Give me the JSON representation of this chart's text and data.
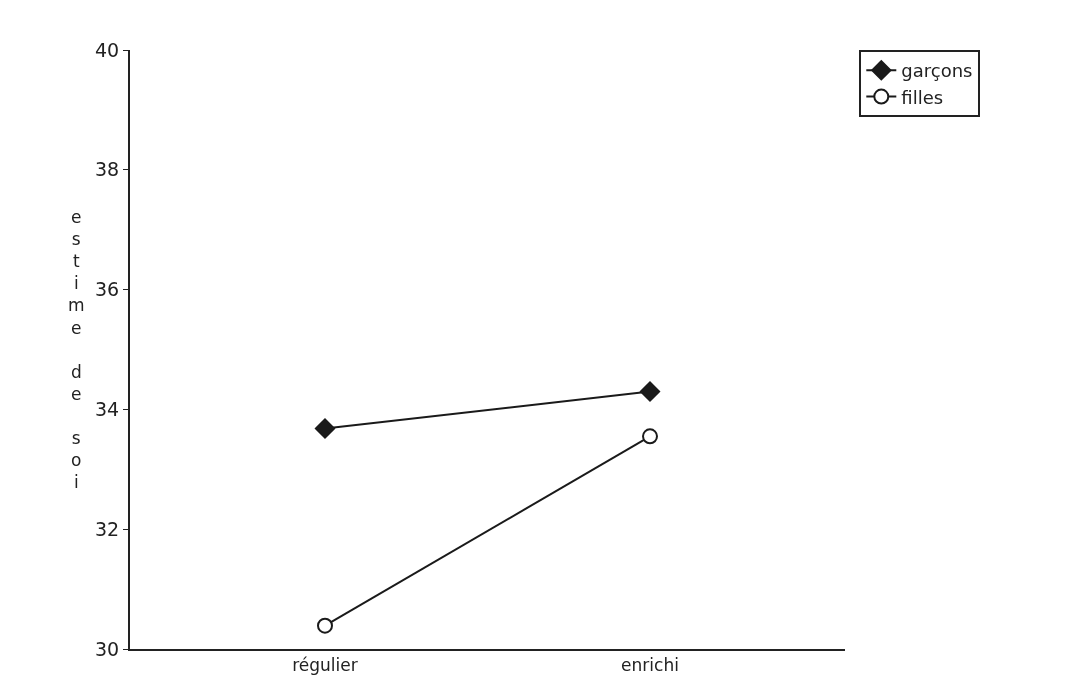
{
  "chart_data": {
    "type": "line",
    "ylabel": "estime de soi",
    "categories": [
      "régulier",
      "enrichi"
    ],
    "series": [
      {
        "name": "garçons",
        "color": "#1a1a1a",
        "values": [
          33.68,
          34.3
        ],
        "marker": "diamond"
      },
      {
        "name": "filles",
        "color": "#1a1a1a",
        "values": [
          30.39,
          33.55
        ],
        "marker": "circle"
      }
    ],
    "ylim": [
      30,
      40
    ],
    "yticks": [
      30,
      32,
      34,
      36,
      38,
      40
    ],
    "legend": "top right",
    "line_style": "solid"
  }
}
